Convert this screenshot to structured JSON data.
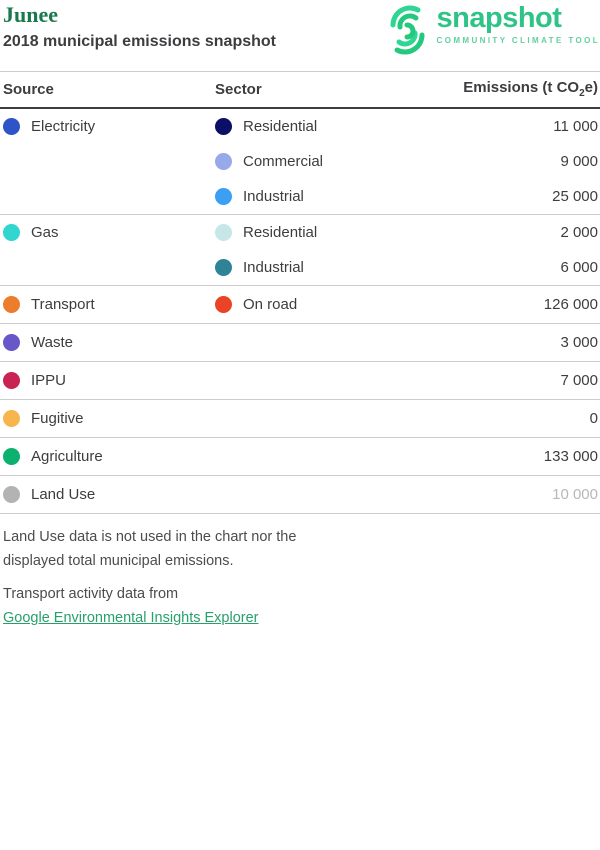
{
  "header": {
    "municipality": "Junee",
    "subtitle": "2018 municipal emissions snapshot"
  },
  "logo": {
    "name": "snapshot",
    "tagline": "COMMUNITY CLIMATE TOOL",
    "brand_color": "#2ec487",
    "icon": "concentric-arcs-fingerprint-icon"
  },
  "table": {
    "columns": {
      "source": "Source",
      "sector": "Sector",
      "emissions_prefix": "Emissions (t CO",
      "emissions_sub": "2",
      "emissions_suffix": "e)"
    },
    "groups": [
      {
        "source": "Electricity",
        "color": "#2d55c8",
        "rows": [
          {
            "sector": "Residential",
            "color": "#0b1066",
            "value": "11 000"
          },
          {
            "sector": "Commercial",
            "color": "#98a9ea",
            "value": "9 000"
          },
          {
            "sector": "Industrial",
            "color": "#3ba0f4",
            "value": "25 000"
          }
        ]
      },
      {
        "source": "Gas",
        "color": "#30d6cf",
        "rows": [
          {
            "sector": "Residential",
            "color": "#c7e6e8",
            "value": "2 000"
          },
          {
            "sector": "Industrial",
            "color": "#2e8496",
            "value": "6 000"
          }
        ]
      },
      {
        "source": "Transport",
        "color": "#ec7d2d",
        "rows": [
          {
            "sector": "On road",
            "color": "#ea4326",
            "value": "126 000"
          }
        ]
      },
      {
        "source": "Waste",
        "color": "#6757c8",
        "rows": [
          {
            "value": "3 000"
          }
        ]
      },
      {
        "source": "IPPU",
        "color": "#c92353",
        "rows": [
          {
            "value": "7 000"
          }
        ]
      },
      {
        "source": "Fugitive",
        "color": "#f7b54e",
        "rows": [
          {
            "value": "0"
          }
        ]
      },
      {
        "source": "Agriculture",
        "color": "#0cb170",
        "rows": [
          {
            "value": "133 000"
          }
        ]
      },
      {
        "source": "Land Use",
        "color": "#b3b3b3",
        "rows": [
          {
            "value": "10 000",
            "muted": true
          }
        ]
      }
    ]
  },
  "notes": {
    "land_use": "Land Use data is not used in the chart nor the displayed total municipal emissions.",
    "transport": "Transport activity data from",
    "transport_link": "Google Environmental Insights Explorer"
  }
}
